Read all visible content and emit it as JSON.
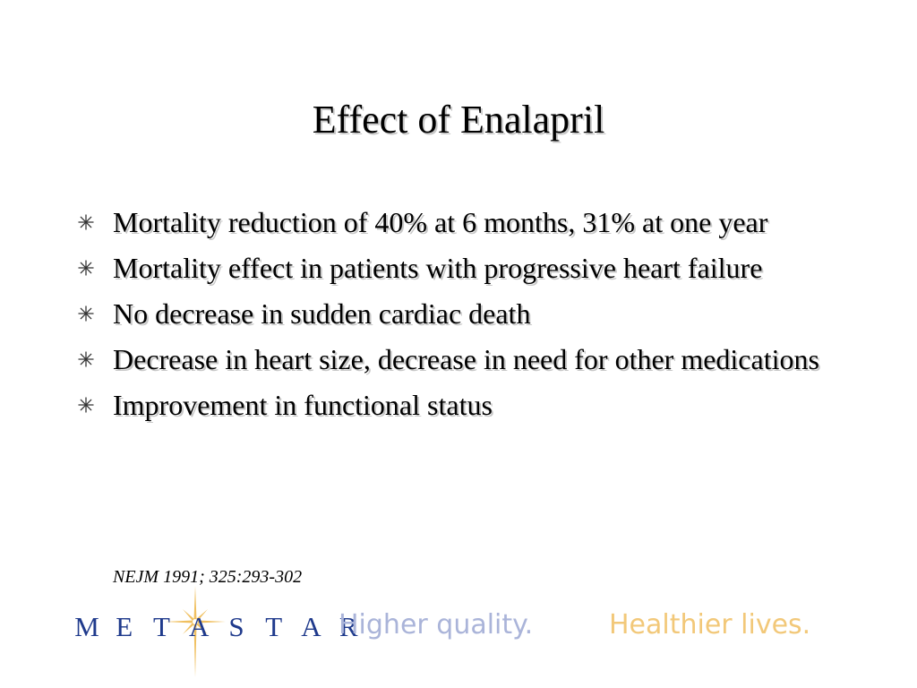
{
  "slide": {
    "title": "Effect of Enalapril",
    "bullets": [
      {
        "text": "Mortality reduction of 40% at 6 months, 31% at one year"
      },
      {
        "text": "Mortality effect in patients with progressive heart failure"
      },
      {
        "text": "No decrease in sudden cardiac death"
      },
      {
        "text": "Decrease in heart size, decrease in need for other medications"
      },
      {
        "text": "Improvement in functional status"
      }
    ],
    "bullet_icon": "asterisk-star-icon",
    "citation": "NEJM 1991; 325:293-302"
  },
  "footer": {
    "logo_letters": [
      "M",
      "E",
      "T",
      "A",
      "S",
      "T",
      "A",
      "R"
    ],
    "logo_icon": "star-burst-icon",
    "tagline_quality": "Higher quality.",
    "tagline_healthier": "Healthier lives.",
    "colors": {
      "logo": "#1f3a8c",
      "quality": "#aab4d9",
      "healthier": "#f2c879",
      "star": "#f0c060"
    }
  }
}
